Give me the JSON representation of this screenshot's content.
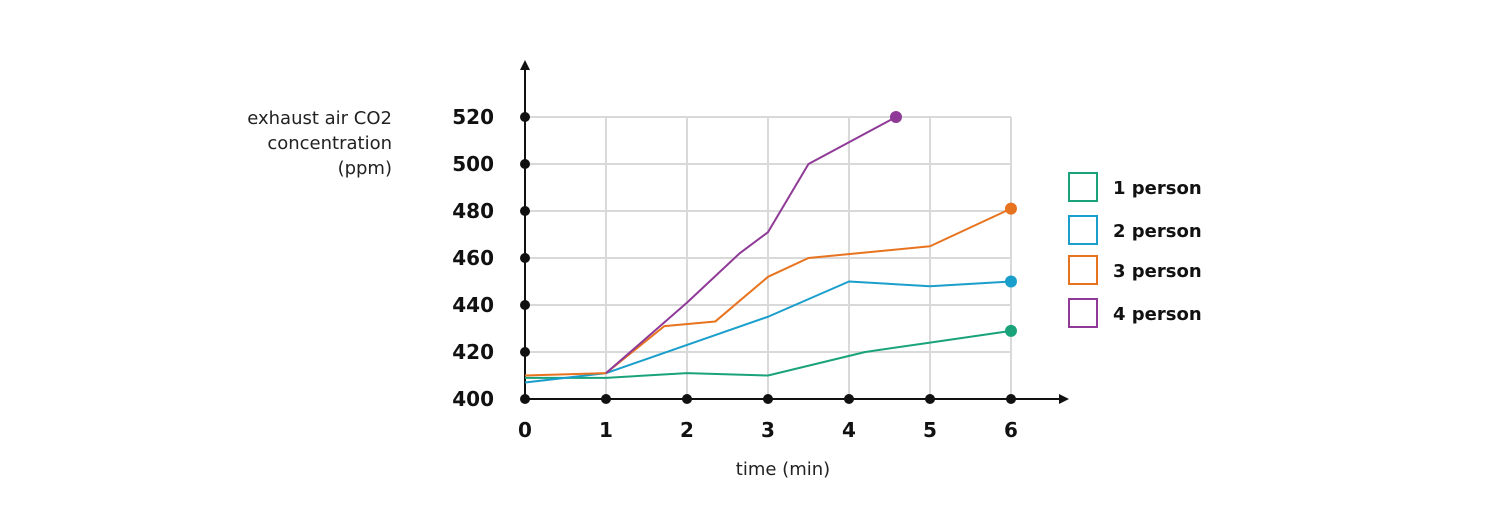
{
  "chart_data": {
    "type": "line",
    "ylabel_lines": [
      "exhaust air CO2",
      "concentration",
      "(ppm)"
    ],
    "xlabel": "time (min)",
    "xlim": [
      0,
      6
    ],
    "ylim": [
      400,
      520
    ],
    "x_ticks": [
      "0",
      "1",
      "2",
      "3",
      "4",
      "5",
      "6"
    ],
    "y_ticks": [
      "400",
      "420",
      "440",
      "460",
      "480",
      "500",
      "520"
    ],
    "grid": true,
    "legend_position": "right",
    "series": [
      {
        "name": "1 person",
        "color": "#1aa37a",
        "x": [
          0,
          0.5,
          1,
          2,
          3,
          4.2,
          5,
          6
        ],
        "y": [
          409,
          409,
          409,
          411,
          410,
          420,
          424,
          429
        ]
      },
      {
        "name": "2 person",
        "color": "#1a9ecb",
        "x": [
          0,
          1,
          2,
          3,
          4,
          5,
          6
        ],
        "y": [
          407,
          411,
          423,
          435,
          450,
          448,
          450
        ]
      },
      {
        "name": "3 person",
        "color": "#e8731f",
        "x": [
          0,
          1,
          1.72,
          2.35,
          3,
          3.5,
          5,
          6
        ],
        "y": [
          410,
          411,
          431,
          433,
          452,
          460,
          465,
          481
        ]
      },
      {
        "name": "4 person",
        "color": "#8f3a96",
        "x": [
          1,
          2,
          2.65,
          3,
          3.5,
          4.58
        ],
        "y": [
          411,
          441,
          462,
          471,
          500,
          520
        ]
      }
    ]
  }
}
